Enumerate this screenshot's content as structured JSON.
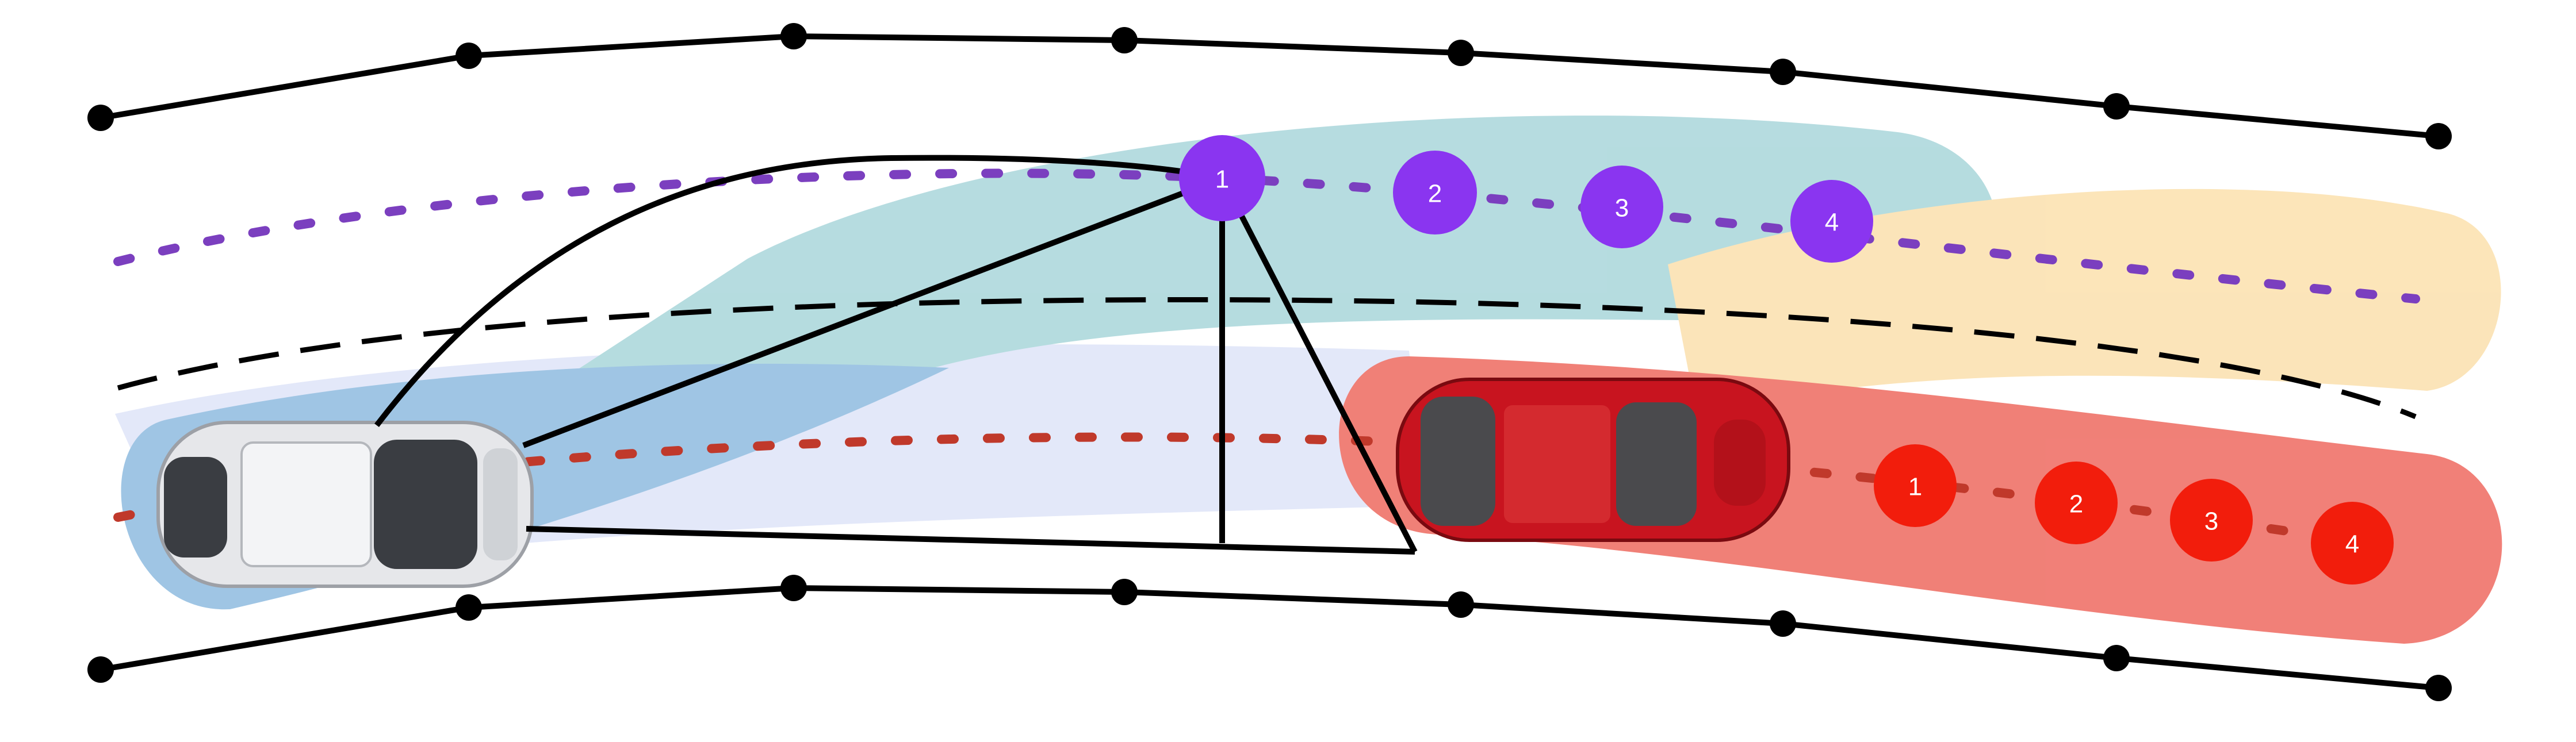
{
  "colors": {
    "road_boundary": "#000000",
    "lane_divider": "#000000",
    "purple_agent": "#8a35f0",
    "purple_path": "#7b3fbf",
    "red_agent": "#f21d0c",
    "red_path": "#c0392b",
    "teal_zone": "#a9d6da",
    "blue_zone": "#8fbce0",
    "lavender_zone": "#dfe4f8",
    "orange_zone": "#fbe0ad",
    "red_zone": "#ee6a60",
    "white_car": "#e6e7ea",
    "red_car": "#c8141f"
  },
  "purple_waypoints": [
    {
      "label": "1"
    },
    {
      "label": "2"
    },
    {
      "label": "3"
    },
    {
      "label": "4"
    }
  ],
  "red_waypoints": [
    {
      "label": "1"
    },
    {
      "label": "2"
    },
    {
      "label": "3"
    },
    {
      "label": "4"
    }
  ],
  "icons": [
    "white-car-icon",
    "red-car-icon"
  ]
}
